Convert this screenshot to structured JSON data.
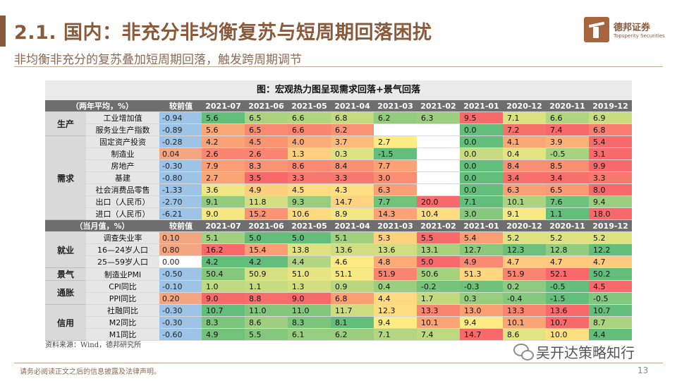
{
  "header": {
    "title": "2.1. 国内：非充分非均衡复苏与短周期回落困扰",
    "subtitle": "非均衡非充分的复苏叠加短周期回落，触发跨周期调节"
  },
  "logo": {
    "name_cn": "德邦证券",
    "name_en": "Topsperity Securities",
    "icon": "company-logo-icon"
  },
  "table": {
    "caption": "图：宏观热力图呈现需求回落+景气回落",
    "change_header": "较前值",
    "months": [
      "2021-07",
      "2021-06",
      "2021-05",
      "2021-04",
      "2021-03",
      "2021-02",
      "2021-01",
      "2020-12",
      "2020-11",
      "2019-12"
    ],
    "sections": [
      {
        "label": "（两年平均，%）",
        "groups": [
          {
            "name": "生产",
            "rows": [
              {
                "indicator": "工业增加值",
                "change": "-0.94",
                "values": [
                  "5.6",
                  "6.5",
                  "6.6",
                  "6.8",
                  "6.2",
                  "6.3",
                  "9.5",
                  "7.1",
                  "6.6",
                  "6.9"
                ]
              },
              {
                "indicator": "服务业生产指数",
                "change": "-0.89",
                "values": [
                  "5.6",
                  "6.5",
                  "6.6",
                  "6.2",
                  "",
                  "",
                  "0.0",
                  "7.2",
                  "7.4",
                  "6.8"
                ]
              }
            ]
          },
          {
            "name": "需求",
            "rows": [
              {
                "indicator": "固定资产投资",
                "change": "-0.28",
                "values": [
                  "4.2",
                  "4.5",
                  "4.0",
                  "3.7",
                  "2.7",
                  "",
                  "0.0",
                  "4.1",
                  "3.9",
                  "5.4"
                ]
              },
              {
                "indicator": "制造业",
                "change": "0.04",
                "values": [
                  "2.6",
                  "2.6",
                  "1.3",
                  "0.3",
                  "-1.5",
                  "",
                  "0.0",
                  "0.4",
                  "-0.5",
                  "3.1"
                ]
              },
              {
                "indicator": "房地产",
                "change": "-0.30",
                "values": [
                  "7.9",
                  "8.3",
                  "8.6",
                  "8.4",
                  "7.7",
                  "",
                  "0.0",
                  "8.4",
                  "8.5",
                  "9.9"
                ]
              },
              {
                "indicator": "基建",
                "change": "-0.80",
                "values": [
                  "2.7",
                  "3.5",
                  "3.3",
                  "3.3",
                  "3.0",
                  "",
                  "0.0",
                  "3.4",
                  "3.4",
                  "3.3"
                ]
              },
              {
                "indicator": "社会消费品零售",
                "change": "-1.33",
                "values": [
                  "3.6",
                  "4.9",
                  "4.5",
                  "4.3",
                  "6.3",
                  "",
                  "0.0",
                  "6.3",
                  "6.5",
                  "8.0"
                ]
              },
              {
                "indicator": "出口（人民币）",
                "change": "-2.70",
                "values": [
                  "9.1",
                  "11.8",
                  "9.3",
                  "14.7",
                  "7.7",
                  "20.0",
                  "7.1",
                  "10.1",
                  "7.6",
                  "9.4"
                ]
              },
              {
                "indicator": "进口（人民币）",
                "change": "-6.21",
                "values": [
                  "9.0",
                  "15.2",
                  "10.6",
                  "8.9",
                  "14.3",
                  "10.4",
                  "3.0",
                  "9.1",
                  "1.1",
                  "18.0"
                ]
              }
            ]
          }
        ]
      },
      {
        "label": "（当月值，%）",
        "groups": [
          {
            "name": "就业",
            "rows": [
              {
                "indicator": "调查失业率",
                "change": "0.10",
                "values": [
                  "5.1",
                  "5.0",
                  "5.0",
                  "5.1",
                  "5.3",
                  "5.5",
                  "5.4",
                  "5.2",
                  "5.2",
                  "5.2"
                ]
              },
              {
                "indicator": "16—24岁人口",
                "change": "0.80",
                "values": [
                  "16.2",
                  "15.4",
                  "13.8",
                  "13.6",
                  "13.6",
                  "13.1",
                  "12.7",
                  "12.3",
                  "12.8",
                  "12.2"
                ]
              },
              {
                "indicator": "25—59岁人口",
                "change": "0.00",
                "values": [
                  "4.2",
                  "4.2",
                  "4.4",
                  "4.6",
                  "4.8",
                  "5.0",
                  "4.9",
                  "4.7",
                  "4.7",
                  "4.7"
                ]
              }
            ]
          },
          {
            "name": "景气",
            "rows": [
              {
                "indicator": "制造业PMI",
                "change": "-0.50",
                "values": [
                  "50.4",
                  "50.9",
                  "51.0",
                  "51.1",
                  "51.9",
                  "50.6",
                  "51.3",
                  "51.9",
                  "52.1",
                  "50.2"
                ]
              }
            ]
          },
          {
            "name": "通胀",
            "rows": [
              {
                "indicator": "CPI同比",
                "change": "-0.10",
                "values": [
                  "1.0",
                  "1.1",
                  "1.3",
                  "0.9",
                  "0.4",
                  "-0.2",
                  "-0.3",
                  "0.2",
                  "-0.5",
                  "4.5"
                ]
              },
              {
                "indicator": "PPI同比",
                "change": "0.20",
                "values": [
                  "9.0",
                  "8.8",
                  "9.0",
                  "6.8",
                  "4.4",
                  "1.7",
                  "0.3",
                  "-0.4",
                  "-1.5",
                  "-0.5"
                ]
              }
            ]
          },
          {
            "name": "信用",
            "rows": [
              {
                "indicator": "社融同比",
                "change": "-0.30",
                "values": [
                  "10.7",
                  "11.0",
                  "11.0",
                  "11.7",
                  "12.3",
                  "13.3",
                  "13.0",
                  "13.3",
                  "13.6",
                  "10.7"
                ]
              },
              {
                "indicator": "M2同比",
                "change": "-0.30",
                "values": [
                  "8.3",
                  "8.6",
                  "8.3",
                  "8.1",
                  "9.4",
                  "10.1",
                  "9.4",
                  "10.1",
                  "10.7",
                  "8.7"
                ]
              },
              {
                "indicator": "M1同比",
                "change": "-0.60",
                "values": [
                  "4.9",
                  "5.5",
                  "6.1",
                  "6.2",
                  "7.1",
                  "7.4",
                  "14.7",
                  "8.6",
                  "10.0",
                  "4.4"
                ]
              }
            ]
          }
        ]
      }
    ]
  },
  "colors": {
    "heat_low": "#63be7b",
    "heat_mid": "#ffeb84",
    "heat_high": "#f8696b",
    "change_neg": "#9dc3e6",
    "change_pos": "#f4a582",
    "change_zero": "#ffffff"
  },
  "source": "资料来源：Wind，德邦研究所",
  "wechat": {
    "icon": "wechat-icon",
    "text": "吴开达策略知行"
  },
  "footer": {
    "disclaimer": "请务必阅读正文之后的信息披露及法律声明。",
    "page_number": "13"
  }
}
